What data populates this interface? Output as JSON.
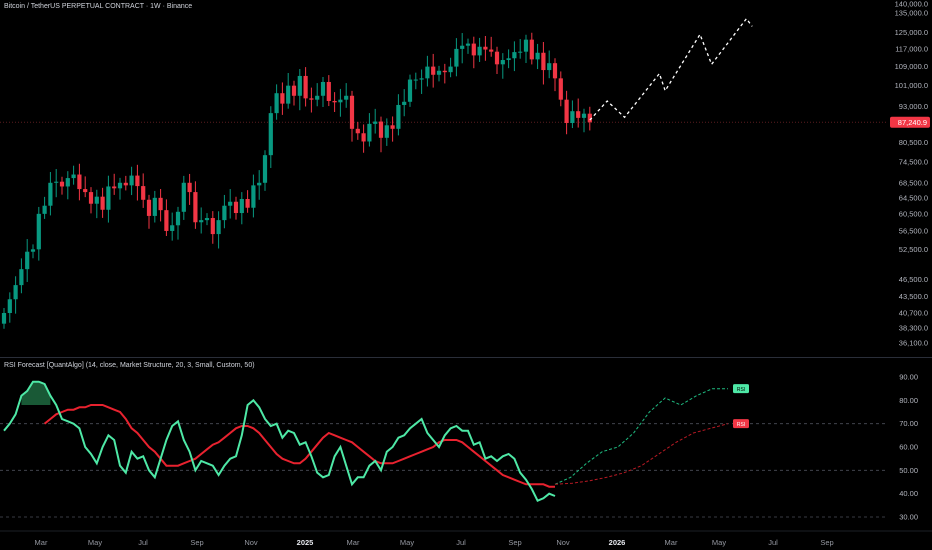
{
  "chart": {
    "title": "Bitcoin / TetherUS PERPETUAL CONTRACT · 1W · Binance",
    "price_label": "87,240.9"
  },
  "indicator": {
    "title": "RSI Forecast [QuantAlgo] (14, close, Market Structure, 20, 3, Small, Custom, 50)",
    "rsi_badge": "RSI",
    "ma_badge": "RSI"
  },
  "colors": {
    "background": "#000000",
    "up": "#089981",
    "down": "#f23645",
    "forecast": "#ffffff",
    "rsi_line": "#4ee8a6",
    "rsi_ma": "#e8222f",
    "rsi_forecast": "#1fba80",
    "ma_forecast": "#b81a24",
    "overbought_fill": "#1f6f44",
    "price_line": "#5a1c1f"
  },
  "chart_data": [
    {
      "type": "candlestick",
      "title": "Bitcoin / TetherUS PERPETUAL CONTRACT · 1W · Binance",
      "scale": "log",
      "y_ticks": [
        140000,
        135000,
        125000,
        117000,
        109000,
        101000,
        93000,
        86500,
        80500,
        74500,
        68500,
        64500,
        60500,
        56500,
        52500,
        46500,
        43500,
        40700,
        38300,
        36100
      ],
      "y_tick_labels": [
        "140,000.0",
        "135,000.0",
        "125,000.0",
        "117,000.0",
        "109,000.0",
        "101,000.0",
        "93,000.0",
        "86,500.0",
        "80,500.0",
        "74,500.0",
        "68,500.0",
        "64,500.0",
        "60,500.0",
        "56,500.0",
        "52,500.0",
        "46,500.0",
        "43,500.0",
        "40,700.0",
        "38,300.0",
        "36,100.0"
      ],
      "x_labels": [
        "Mar",
        "May",
        "Jul",
        "Sep",
        "Nov",
        "2025",
        "Mar",
        "May",
        "Jul",
        "Sep",
        "Nov",
        "2026",
        "Mar",
        "May",
        "Jul",
        "Sep"
      ],
      "x_label_weeks": [
        0,
        9,
        17,
        26,
        35,
        44,
        52,
        61,
        70,
        79,
        87,
        96,
        105,
        113,
        122,
        131
      ],
      "last_price": 87240.9,
      "closes": [
        40700,
        43000,
        45500,
        48500,
        52000,
        52500,
        60500,
        62500,
        68500,
        68800,
        67500,
        69800,
        70800,
        66800,
        66000,
        63000,
        64800,
        61500,
        67500,
        67000,
        68500,
        67800,
        70500,
        67600,
        64000,
        60000,
        64500,
        61400,
        56500,
        57800,
        61000,
        68500,
        66000,
        58500,
        59000,
        59500,
        55800,
        59000,
        62500,
        63500,
        60700,
        64200,
        62000,
        67800,
        68500,
        76500,
        90500,
        98000,
        94000,
        101000,
        97000,
        105000,
        96000,
        95500,
        97000,
        102500,
        95000,
        94500,
        95500,
        97000,
        85000,
        83500,
        80800,
        86700,
        87500,
        82000,
        86200,
        85000,
        93500,
        94700,
        103500,
        103500,
        104000,
        109000,
        105500,
        107200,
        106600,
        109000,
        117000,
        118500,
        119500,
        114000,
        118000,
        116700,
        115700,
        110000,
        111900,
        112700,
        115500,
        115700,
        121400,
        112200,
        115200,
        107500,
        110500,
        104000,
        95500,
        87000,
        91200,
        88800,
        90300,
        87240.9
      ],
      "forecast": [
        {
          "week": 0,
          "value": 88000
        },
        {
          "week": 3,
          "value": 95000
        },
        {
          "week": 6,
          "value": 89000
        },
        {
          "week": 12,
          "value": 106000
        },
        {
          "week": 13,
          "value": 99000
        },
        {
          "week": 19,
          "value": 124000
        },
        {
          "week": 21,
          "value": 110000
        },
        {
          "week": 27,
          "value": 132000
        },
        {
          "week": 28,
          "value": 128000
        }
      ]
    },
    {
      "type": "line",
      "title": "RSI Forecast [QuantAlgo] (14, close, Market Structure, 20, 3, Small, Custom, 50)",
      "y_ticks": [
        30,
        40,
        50,
        60,
        70,
        80,
        90
      ],
      "y_tick_labels": [
        "30.00",
        "40.00",
        "50.00",
        "60.00",
        "70.00",
        "80.00",
        "90.00"
      ],
      "ylim": [
        25,
        95
      ],
      "levels": [
        30,
        50,
        70
      ],
      "series": [
        {
          "values": [
            67,
            70,
            74,
            82,
            84,
            88,
            88,
            87,
            82,
            78,
            72,
            71,
            70,
            68,
            60,
            57,
            53,
            60,
            65,
            63,
            52,
            49,
            58,
            55,
            56,
            50,
            47,
            55,
            63,
            69,
            71,
            63,
            58,
            50,
            54,
            53,
            52,
            48,
            52,
            55,
            56,
            65,
            78,
            80,
            77,
            72,
            69,
            70,
            64,
            67,
            66,
            61,
            62,
            56,
            49,
            47,
            48,
            56,
            60,
            52,
            44,
            47,
            47,
            52,
            54,
            50,
            58,
            60,
            64,
            65,
            68,
            70,
            72,
            66,
            63,
            60,
            65,
            68,
            69,
            67,
            67,
            61,
            62,
            55,
            56,
            54,
            56,
            57,
            55,
            49,
            46,
            42,
            37,
            38,
            40,
            39
          ]
        },
        {
          "values": [
            70,
            72,
            74,
            75,
            76,
            76,
            77,
            77,
            78,
            78,
            78,
            77,
            76,
            75,
            72,
            68,
            66,
            63,
            60,
            58,
            55,
            52,
            52,
            52,
            53,
            54,
            55,
            57,
            59,
            61,
            62,
            64,
            66,
            68,
            69,
            69,
            68,
            66,
            63,
            60,
            57,
            55,
            54,
            53,
            53,
            55,
            58,
            61,
            64,
            66,
            65,
            64,
            63,
            62,
            60,
            58,
            56,
            54,
            53,
            53,
            53,
            54,
            55,
            56,
            57,
            58,
            59,
            60,
            62,
            63,
            63,
            63,
            62,
            60,
            58,
            56,
            54,
            52,
            50,
            48,
            47,
            46,
            45,
            44,
            44,
            44,
            44,
            43,
            43
          ]
        }
      ],
      "forecast_series": [
        {
          "values": [
            44,
            47,
            53,
            58,
            60,
            66,
            75,
            81,
            78,
            82,
            85,
            85
          ]
        },
        {
          "values": [
            44,
            44.5,
            45.5,
            47,
            49,
            52,
            57,
            62,
            66,
            68,
            70
          ]
        }
      ]
    }
  ]
}
